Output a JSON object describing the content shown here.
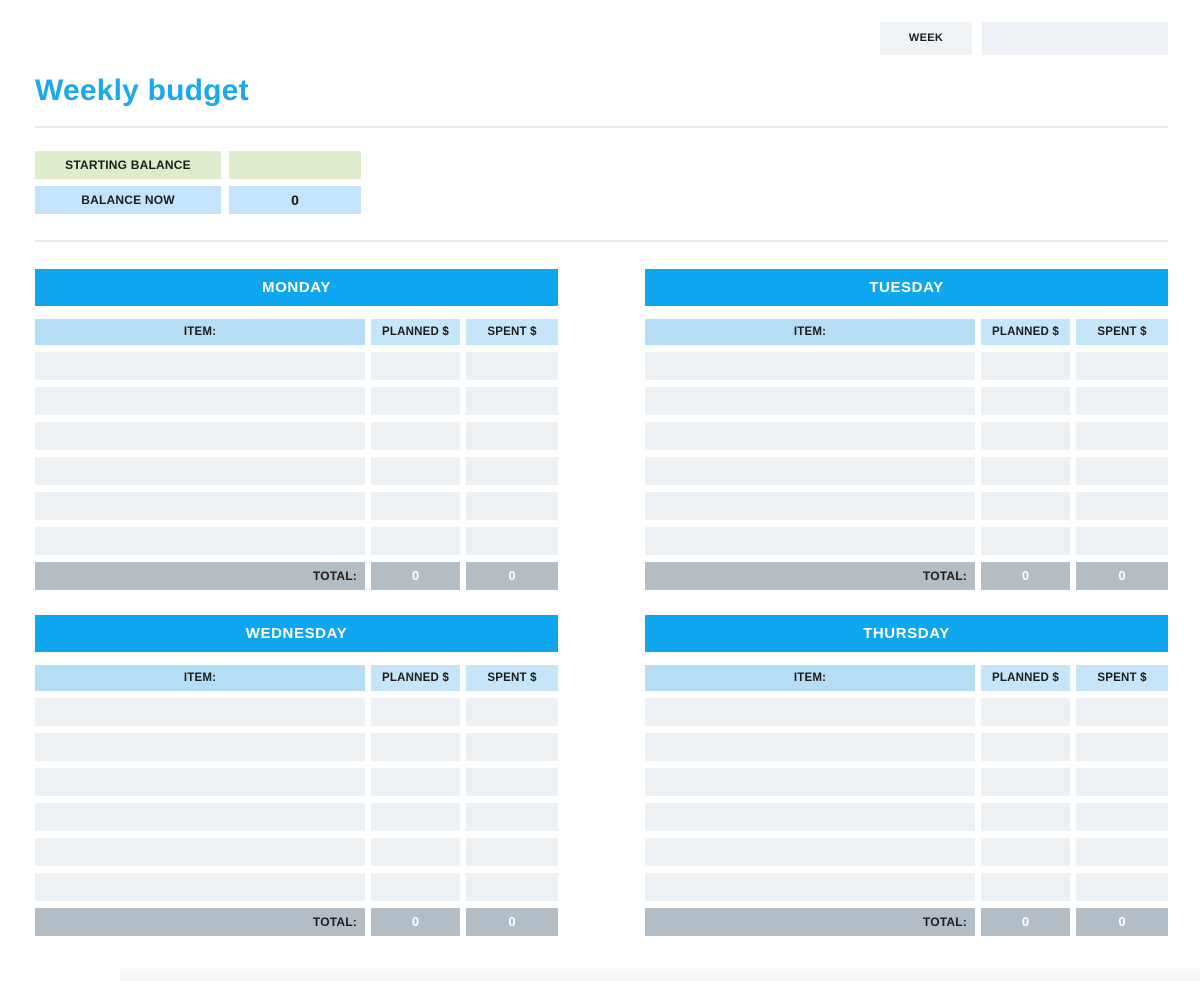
{
  "page": {
    "week_label": "WEEK",
    "week_value": "",
    "title": "Weekly budget"
  },
  "balance": {
    "starting_label": "STARTING BALANCE",
    "starting_value": "",
    "now_label": "BALANCE NOW",
    "now_value": "0"
  },
  "columns": {
    "item": "ITEM:",
    "planned": "PLANNED $",
    "spent": "SPENT $"
  },
  "total_label": "TOTAL:",
  "tables": [
    {
      "day": "MONDAY",
      "rows": [
        {
          "item": "",
          "planned": "",
          "spent": ""
        },
        {
          "item": "",
          "planned": "",
          "spent": ""
        },
        {
          "item": "",
          "planned": "",
          "spent": ""
        },
        {
          "item": "",
          "planned": "",
          "spent": ""
        },
        {
          "item": "",
          "planned": "",
          "spent": ""
        },
        {
          "item": "",
          "planned": "",
          "spent": ""
        }
      ],
      "totals": {
        "planned": "0",
        "spent": "0"
      }
    },
    {
      "day": "TUESDAY",
      "rows": [
        {
          "item": "",
          "planned": "",
          "spent": ""
        },
        {
          "item": "",
          "planned": "",
          "spent": ""
        },
        {
          "item": "",
          "planned": "",
          "spent": ""
        },
        {
          "item": "",
          "planned": "",
          "spent": ""
        },
        {
          "item": "",
          "planned": "",
          "spent": ""
        },
        {
          "item": "",
          "planned": "",
          "spent": ""
        }
      ],
      "totals": {
        "planned": "0",
        "spent": "0"
      }
    },
    {
      "day": "WEDNESDAY",
      "rows": [
        {
          "item": "",
          "planned": "",
          "spent": ""
        },
        {
          "item": "",
          "planned": "",
          "spent": ""
        },
        {
          "item": "",
          "planned": "",
          "spent": ""
        },
        {
          "item": "",
          "planned": "",
          "spent": ""
        },
        {
          "item": "",
          "planned": "",
          "spent": ""
        },
        {
          "item": "",
          "planned": "",
          "spent": ""
        }
      ],
      "totals": {
        "planned": "0",
        "spent": "0"
      }
    },
    {
      "day": "THURSDAY",
      "rows": [
        {
          "item": "",
          "planned": "",
          "spent": ""
        },
        {
          "item": "",
          "planned": "",
          "spent": ""
        },
        {
          "item": "",
          "planned": "",
          "spent": ""
        },
        {
          "item": "",
          "planned": "",
          "spent": ""
        },
        {
          "item": "",
          "planned": "",
          "spent": ""
        },
        {
          "item": "",
          "planned": "",
          "spent": ""
        }
      ],
      "totals": {
        "planned": "0",
        "spent": "0"
      }
    }
  ],
  "colors": {
    "accent_blue": "#0da6ef",
    "title_blue": "#1ba9ec",
    "column_header_blue": "#b5def6",
    "column_subheader_blue": "#c5e6f9",
    "row_gray": "#edf1f4",
    "total_gray": "#b3bdc5",
    "starting_balance_green": "#ddeccb",
    "balance_now_blue": "#c3e4fa",
    "week_box_gray": "#eff3f6"
  }
}
